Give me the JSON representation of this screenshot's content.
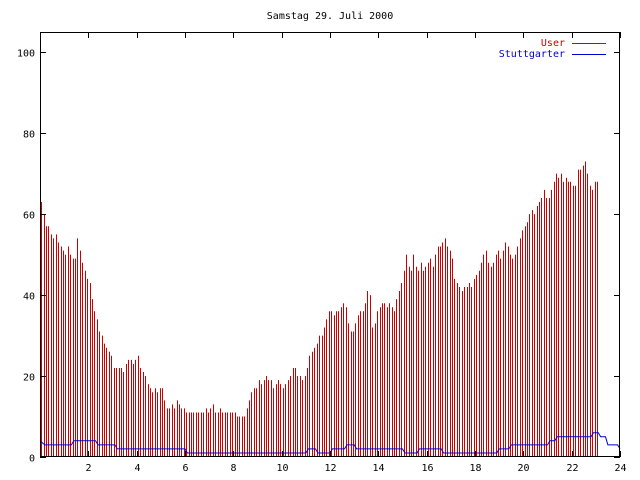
{
  "chart_data": {
    "type": "bar",
    "title": "Samstag 29. Juli 2000",
    "xlabel": "",
    "ylabel": "",
    "xlim": [
      0,
      24
    ],
    "ylim": [
      0,
      105
    ],
    "xticks": [
      "2",
      "4",
      "6",
      "8",
      "10",
      "12",
      "14",
      "16",
      "18",
      "20",
      "22",
      "24"
    ],
    "yticks": [
      "0",
      "20",
      "40",
      "60",
      "80",
      "100"
    ],
    "legend_position": "top-right",
    "series": [
      {
        "name": "User",
        "kind": "bar",
        "color": "#cc0000",
        "step_hours": 0.1,
        "values": [
          63,
          60,
          57,
          57,
          55,
          54,
          55,
          53,
          52,
          51,
          50,
          52,
          50,
          49,
          49,
          54,
          51,
          48,
          46,
          44,
          43,
          39,
          36,
          34,
          31,
          30,
          28,
          27,
          26,
          25,
          22,
          22,
          22,
          22,
          21,
          23,
          24,
          24,
          23,
          24,
          25,
          22,
          21,
          20,
          18,
          17,
          16,
          17,
          16,
          17,
          17,
          14,
          12,
          12,
          13,
          12,
          14,
          13,
          12,
          12,
          11,
          11,
          11,
          11,
          11,
          11,
          11,
          11,
          12,
          11,
          12,
          13,
          11,
          11,
          12,
          11,
          11,
          11,
          11,
          11,
          11,
          10,
          10,
          10,
          10,
          12,
          14,
          16,
          17,
          17,
          19,
          18,
          19,
          20,
          19,
          19,
          17,
          18,
          19,
          18,
          17,
          18,
          19,
          20,
          22,
          22,
          20,
          20,
          19,
          20,
          22,
          25,
          26,
          27,
          28,
          30,
          30,
          32,
          34,
          36,
          36,
          35,
          36,
          36,
          37,
          38,
          37,
          33,
          31,
          31,
          33,
          35,
          36,
          36,
          38,
          41,
          40,
          32,
          33,
          36,
          37,
          38,
          38,
          37,
          38,
          37,
          36,
          39,
          41,
          43,
          46,
          50,
          47,
          46,
          50,
          47,
          46,
          48,
          46,
          47,
          48,
          49,
          47,
          50,
          52,
          52,
          53,
          54,
          52,
          51,
          49,
          44,
          43,
          42,
          41,
          42,
          42,
          43,
          42,
          44,
          45,
          46,
          48,
          50,
          51,
          48,
          47,
          48,
          50,
          51,
          49,
          51,
          53,
          52,
          50,
          49,
          50,
          52,
          54,
          56,
          57,
          58,
          60,
          61,
          60,
          62,
          63,
          64,
          66,
          64,
          64,
          66,
          68,
          70,
          69,
          70,
          68,
          69,
          68,
          68,
          67,
          67,
          71,
          71,
          72,
          73,
          70,
          67,
          66,
          68,
          68
        ]
      },
      {
        "name": "Stuttgarter",
        "kind": "line",
        "color": "#0000cc",
        "points": [
          [
            0,
            4
          ],
          [
            0.2,
            3
          ],
          [
            1.3,
            3
          ],
          [
            1.4,
            4
          ],
          [
            2.3,
            4
          ],
          [
            2.4,
            3
          ],
          [
            3.1,
            3
          ],
          [
            3.2,
            2
          ],
          [
            6.0,
            2
          ],
          [
            6.1,
            1
          ],
          [
            11.0,
            1
          ],
          [
            11.1,
            2
          ],
          [
            11.4,
            2
          ],
          [
            11.5,
            1
          ],
          [
            12.0,
            1
          ],
          [
            12.1,
            2
          ],
          [
            12.6,
            2
          ],
          [
            12.7,
            3
          ],
          [
            13.0,
            3
          ],
          [
            13.1,
            2
          ],
          [
            15.0,
            2
          ],
          [
            15.1,
            1
          ],
          [
            15.6,
            1
          ],
          [
            15.7,
            2
          ],
          [
            16.6,
            2
          ],
          [
            16.7,
            1
          ],
          [
            18.9,
            1
          ],
          [
            19.0,
            2
          ],
          [
            19.4,
            2
          ],
          [
            19.5,
            3
          ],
          [
            21.0,
            3
          ],
          [
            21.1,
            4
          ],
          [
            21.3,
            4
          ],
          [
            21.4,
            5
          ],
          [
            22.8,
            5
          ],
          [
            22.9,
            6
          ],
          [
            23.1,
            6
          ],
          [
            23.2,
            5
          ],
          [
            23.4,
            5
          ],
          [
            23.5,
            3
          ],
          [
            23.9,
            3
          ],
          [
            24.0,
            2
          ]
        ]
      }
    ]
  }
}
